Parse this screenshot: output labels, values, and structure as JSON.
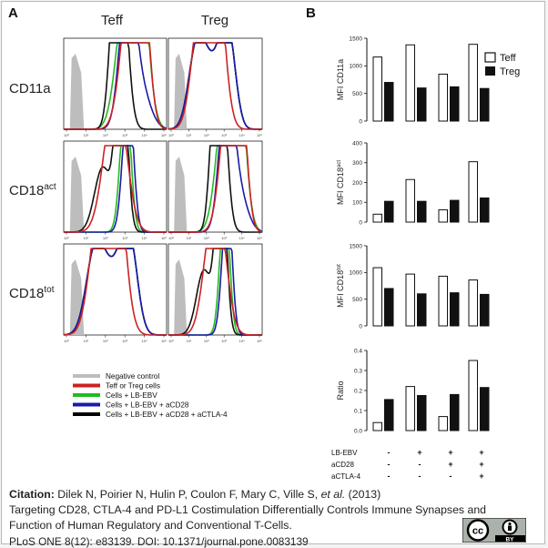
{
  "figure": {
    "panel_a_letter": "A",
    "panel_b_letter": "B",
    "col_headers": [
      "Teff",
      "Treg"
    ],
    "row_labels": [
      {
        "base": "CD11a",
        "sup": ""
      },
      {
        "base": "CD18",
        "sup": "act"
      },
      {
        "base": "CD18",
        "sup": "tot"
      }
    ],
    "histogram_axis_ticks": [
      "10⁰",
      "10¹",
      "10²",
      "10³",
      "10⁴",
      "10⁵"
    ],
    "legend": [
      {
        "label": "Negative control",
        "color": "#bdbdbd"
      },
      {
        "label": "Teff or Treg cells",
        "color": "#cc2222"
      },
      {
        "label": "Cells + LB-EBV",
        "color": "#22bb22"
      },
      {
        "label": "Cells + LB-EBV + aCD28",
        "color": "#1a1aa8"
      },
      {
        "label": "Cells + LB-EBV + aCD28 + aCTLA-4",
        "color": "#000000"
      }
    ],
    "bar_legend": [
      "Teff",
      "Treg"
    ],
    "treatment_table": {
      "rows": [
        {
          "label": "LB-EBV",
          "values": [
            "-",
            "+",
            "+",
            "+"
          ]
        },
        {
          "label": "aCD28",
          "values": [
            "-",
            "-",
            "+",
            "+"
          ]
        },
        {
          "label": "aCTLA-4",
          "values": [
            "-",
            "-",
            "-",
            "+"
          ]
        }
      ]
    }
  },
  "chart_data": [
    {
      "type": "bar",
      "ylabel": "MFI CD11a",
      "ylabel_sup": "",
      "ylim": [
        0,
        1500
      ],
      "yticks": [
        0,
        500,
        1000,
        1500
      ],
      "series": [
        {
          "name": "Teff",
          "values": [
            1160,
            1380,
            850,
            1390
          ]
        },
        {
          "name": "Treg",
          "values": [
            700,
            600,
            620,
            590
          ]
        }
      ]
    },
    {
      "type": "bar",
      "ylabel": "MFI CD18",
      "ylabel_sup": "act",
      "ylim": [
        0,
        400
      ],
      "yticks": [
        0,
        100,
        200,
        300,
        400
      ],
      "series": [
        {
          "name": "Teff",
          "values": [
            40,
            215,
            62,
            305
          ]
        },
        {
          "name": "Treg",
          "values": [
            105,
            105,
            110,
            122
          ]
        }
      ]
    },
    {
      "type": "bar",
      "ylabel": "MFI CD18",
      "ylabel_sup": "tot",
      "ylim": [
        0,
        1500
      ],
      "yticks": [
        0,
        500,
        1000,
        1500
      ],
      "series": [
        {
          "name": "Teff",
          "values": [
            1090,
            970,
            930,
            860
          ]
        },
        {
          "name": "Treg",
          "values": [
            700,
            600,
            620,
            590
          ]
        }
      ]
    },
    {
      "type": "bar",
      "ylabel": "Ratio",
      "ylabel_sup": "",
      "ylim": [
        0,
        0.4
      ],
      "yticks": [
        0.0,
        0.1,
        0.2,
        0.3,
        0.4
      ],
      "series": [
        {
          "name": "Teff",
          "values": [
            0.04,
            0.22,
            0.07,
            0.35
          ]
        },
        {
          "name": "Treg",
          "values": [
            0.155,
            0.175,
            0.18,
            0.215
          ]
        }
      ]
    }
  ],
  "citation": {
    "label": "Citation:",
    "authors": " Dilek N, Poirier N, Hulin P, Coulon F, Mary C, Ville S, ",
    "et_al": "et al.",
    "year": " (2013)",
    "title_line1": "Targeting CD28, CTLA-4 and PD-L1 Costimulation Differentially Controls Immune Synapses and",
    "title_line2": "Function of Human Regulatory and Conventional T-Cells.",
    "source": "PLoS ONE 8(12): e83139. DOI: 10.1371/journal.pone.0083139"
  },
  "badge": {
    "cc": "cc",
    "by": "BY"
  }
}
